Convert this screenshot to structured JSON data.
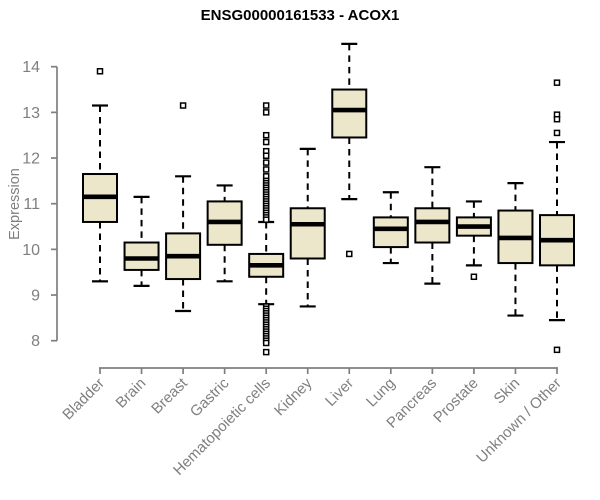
{
  "chart_data": {
    "type": "boxplot",
    "title": "ENSG00000161533 - ACOX1",
    "ylabel": "Expression",
    "xlabel": "",
    "yticks": [
      8,
      9,
      10,
      11,
      12,
      13,
      14
    ],
    "ylim": [
      7.55,
      14.75
    ],
    "grid": false,
    "legend": "none",
    "categories": [
      "Bladder",
      "Brain",
      "Breast",
      "Gastric",
      "Hematopoietic cells",
      "Kidney",
      "Liver",
      "Lung",
      "Pancreas",
      "Prostate",
      "Skin",
      "Unknown / Other"
    ],
    "boxes": [
      {
        "category": "Bladder",
        "whisker_low": 9.3,
        "q1": 10.6,
        "median": 11.15,
        "q3": 11.65,
        "whisker_high": 13.15,
        "outliers": [
          13.9
        ]
      },
      {
        "category": "Brain",
        "whisker_low": 9.2,
        "q1": 9.55,
        "median": 9.8,
        "q3": 10.15,
        "whisker_high": 11.15,
        "outliers": []
      },
      {
        "category": "Breast",
        "whisker_low": 8.65,
        "q1": 9.35,
        "median": 9.85,
        "q3": 10.35,
        "whisker_high": 11.6,
        "outliers": [
          13.15
        ]
      },
      {
        "category": "Gastric",
        "whisker_low": 9.3,
        "q1": 10.1,
        "median": 10.6,
        "q3": 11.05,
        "whisker_high": 11.4,
        "outliers": []
      },
      {
        "category": "Hematopoietic cells",
        "whisker_low": 8.8,
        "q1": 9.4,
        "median": 9.65,
        "q3": 9.9,
        "whisker_high": 10.6,
        "outliers": [
          13.15,
          13.0,
          12.5,
          12.35,
          12.15,
          12.05,
          11.9,
          11.75,
          11.6,
          11.5,
          11.45,
          11.4,
          11.35,
          11.3,
          11.25,
          11.2,
          11.15,
          11.1,
          11.05,
          11.0,
          10.95,
          10.9,
          10.85,
          10.8,
          10.75,
          10.7,
          10.65,
          8.75,
          8.7,
          8.65,
          8.6,
          8.55,
          8.5,
          8.45,
          8.4,
          8.35,
          8.3,
          8.25,
          8.2,
          8.15,
          8.1,
          8.05,
          8.0,
          7.95,
          7.75
        ]
      },
      {
        "category": "Kidney",
        "whisker_low": 8.75,
        "q1": 9.8,
        "median": 10.55,
        "q3": 10.9,
        "whisker_high": 12.2,
        "outliers": []
      },
      {
        "category": "Liver",
        "whisker_low": 11.1,
        "q1": 12.45,
        "median": 13.05,
        "q3": 13.5,
        "whisker_high": 14.5,
        "outliers": [
          9.9
        ]
      },
      {
        "category": "Lung",
        "whisker_low": 9.7,
        "q1": 10.05,
        "median": 10.45,
        "q3": 10.7,
        "whisker_high": 11.25,
        "outliers": []
      },
      {
        "category": "Pancreas",
        "whisker_low": 9.25,
        "q1": 10.15,
        "median": 10.6,
        "q3": 10.9,
        "whisker_high": 11.8,
        "outliers": []
      },
      {
        "category": "Prostate",
        "whisker_low": 9.65,
        "q1": 10.3,
        "median": 10.5,
        "q3": 10.7,
        "whisker_high": 11.05,
        "outliers": [
          9.4
        ]
      },
      {
        "category": "Skin",
        "whisker_low": 8.55,
        "q1": 9.7,
        "median": 10.25,
        "q3": 10.85,
        "whisker_high": 11.45,
        "outliers": []
      },
      {
        "category": "Unknown / Other",
        "whisker_low": 8.45,
        "q1": 9.65,
        "median": 10.2,
        "q3": 10.75,
        "whisker_high": 12.35,
        "outliers": [
          13.65,
          12.95,
          12.85,
          12.55,
          7.8
        ]
      }
    ],
    "colors": {
      "box_fill": "#ECE6CB",
      "box_border": "#000000",
      "median": "#000000",
      "whisker": "#000000",
      "outlier_stroke": "#000000",
      "axis": "#7f7f7f",
      "tick_label": "#7f7f7f",
      "category_label": "#7f7f7f",
      "title": "#000000",
      "background": "#ffffff"
    }
  }
}
